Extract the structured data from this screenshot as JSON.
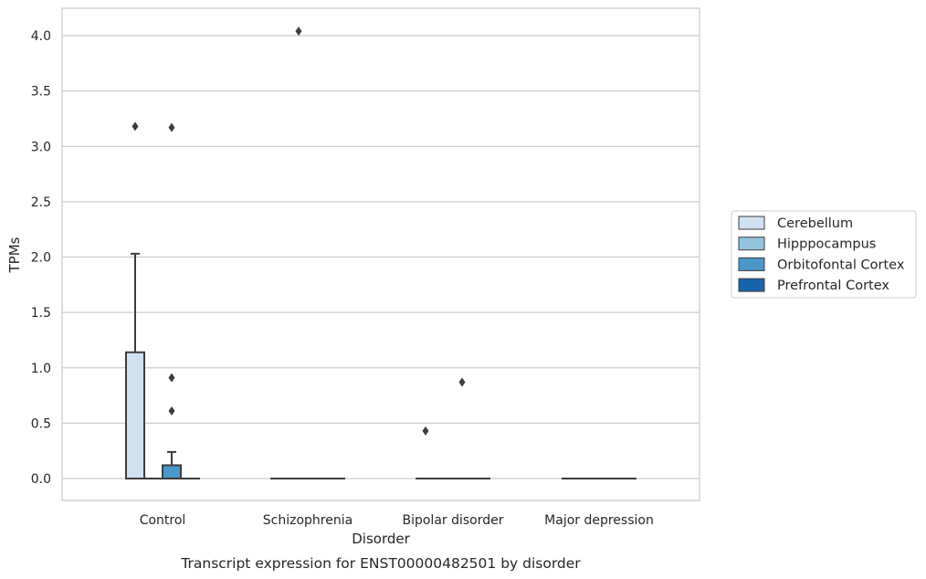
{
  "chart_data": {
    "type": "box",
    "caption": "Transcript expression for ENST00000482501 by disorder",
    "xlabel": "Disorder",
    "ylabel": "TPMs",
    "ylim": [
      -0.2,
      4.25
    ],
    "yticks": [
      0.0,
      0.5,
      1.0,
      1.5,
      2.0,
      2.5,
      3.0,
      3.5,
      4.0
    ],
    "ytick_labels": [
      "0.0",
      "0.5",
      "1.0",
      "1.5",
      "2.0",
      "2.5",
      "3.0",
      "3.5",
      "4.0"
    ],
    "grid": "horizontal",
    "legend_position": "right",
    "categories": [
      "Control",
      "Schizophrenia",
      "Bipolar disorder",
      "Major depression"
    ],
    "series": [
      {
        "name": "Cerebellum",
        "color": "#d0e1f2",
        "boxes": [
          {
            "q1": 0.0,
            "median": 0.0,
            "q3": 1.14,
            "whisker_low": 0.0,
            "whisker_high": 2.03,
            "outliers": [
              3.18
            ]
          },
          {
            "q1": 0.0,
            "median": 0.0,
            "q3": 0.0,
            "whisker_low": 0.0,
            "whisker_high": 0.0,
            "outliers": []
          },
          {
            "q1": 0.0,
            "median": 0.0,
            "q3": 0.0,
            "whisker_low": 0.0,
            "whisker_high": 0.0,
            "outliers": [
              0.43
            ]
          },
          {
            "q1": 0.0,
            "median": 0.0,
            "q3": 0.0,
            "whisker_low": 0.0,
            "whisker_high": 0.0,
            "outliers": []
          }
        ]
      },
      {
        "name": "Hipppocampus",
        "color": "#94c4df",
        "boxes": [
          {
            "q1": 0.0,
            "median": 0.0,
            "q3": 0.0,
            "whisker_low": 0.0,
            "whisker_high": 0.0,
            "outliers": []
          },
          {
            "q1": 0.0,
            "median": 0.0,
            "q3": 0.0,
            "whisker_low": 0.0,
            "whisker_high": 0.0,
            "outliers": [
              4.04
            ]
          },
          {
            "q1": 0.0,
            "median": 0.0,
            "q3": 0.0,
            "whisker_low": 0.0,
            "whisker_high": 0.0,
            "outliers": []
          },
          {
            "q1": 0.0,
            "median": 0.0,
            "q3": 0.0,
            "whisker_low": 0.0,
            "whisker_high": 0.0,
            "outliers": []
          }
        ]
      },
      {
        "name": "Orbitofontal Cortex",
        "color": "#4a98c9",
        "boxes": [
          {
            "q1": 0.0,
            "median": 0.0,
            "q3": 0.12,
            "whisker_low": 0.0,
            "whisker_high": 0.24,
            "outliers": [
              0.61,
              0.91,
              3.17
            ]
          },
          {
            "q1": 0.0,
            "median": 0.0,
            "q3": 0.0,
            "whisker_low": 0.0,
            "whisker_high": 0.0,
            "outliers": []
          },
          {
            "q1": 0.0,
            "median": 0.0,
            "q3": 0.0,
            "whisker_low": 0.0,
            "whisker_high": 0.0,
            "outliers": [
              0.87
            ]
          },
          {
            "q1": 0.0,
            "median": 0.0,
            "q3": 0.0,
            "whisker_low": 0.0,
            "whisker_high": 0.0,
            "outliers": []
          }
        ]
      },
      {
        "name": "Prefrontal Cortex",
        "color": "#1764ab",
        "boxes": [
          {
            "q1": 0.0,
            "median": 0.0,
            "q3": 0.0,
            "whisker_low": 0.0,
            "whisker_high": 0.0,
            "outliers": []
          },
          {
            "q1": 0.0,
            "median": 0.0,
            "q3": 0.0,
            "whisker_low": 0.0,
            "whisker_high": 0.0,
            "outliers": []
          },
          {
            "q1": 0.0,
            "median": 0.0,
            "q3": 0.0,
            "whisker_low": 0.0,
            "whisker_high": 0.0,
            "outliers": []
          },
          {
            "q1": 0.0,
            "median": 0.0,
            "q3": 0.0,
            "whisker_low": 0.0,
            "whisker_high": 0.0,
            "outliers": []
          }
        ]
      }
    ],
    "colors": {
      "edge": "#3d3d3d",
      "grid": "#cccccc",
      "frame": "#cccccc",
      "text": "#262626"
    }
  }
}
